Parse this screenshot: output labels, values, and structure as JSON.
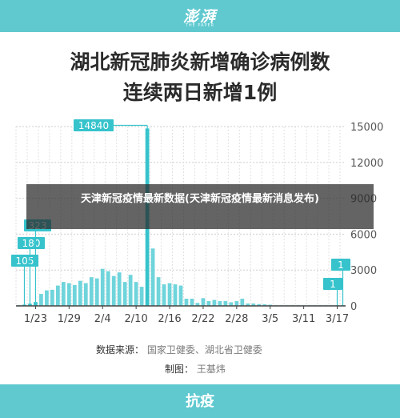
{
  "header": {
    "logo": "澎湃",
    "logo_sub": "THE PAPER"
  },
  "title_line1": "湖北新冠肺炎新增确诊病例数",
  "title_line2": "连续两日新增1例",
  "overlay_text": "天津新冠疫情最新数据(天津新冠疫情最新消息发布)",
  "source": {
    "label": "数据来源：",
    "value": "国家卫健委、湖北省卫健委"
  },
  "credit": {
    "label": "制图：",
    "value": "王基炜"
  },
  "footer": {
    "label": "抗疫"
  },
  "colors": {
    "accent": "#5fc9cf",
    "bar": "#6fd4db",
    "highlight": "#36c3cc"
  },
  "chart_data": {
    "type": "bar",
    "x_ticks": [
      "1/23",
      "1/29",
      "2/4",
      "2/10",
      "2/16",
      "2/22",
      "2/28",
      "3/5",
      "3/11",
      "3/17"
    ],
    "y_ticks": [
      "15000",
      "12000",
      "9000",
      "6000",
      "3000",
      "0"
    ],
    "ylim": [
      0,
      15000
    ],
    "categories": [
      "1/20",
      "1/21",
      "1/22",
      "1/23",
      "1/24",
      "1/25",
      "1/26",
      "1/27",
      "1/28",
      "1/29",
      "1/30",
      "1/31",
      "2/1",
      "2/2",
      "2/3",
      "2/4",
      "2/5",
      "2/6",
      "2/7",
      "2/8",
      "2/9",
      "2/10",
      "2/11",
      "2/12",
      "2/13",
      "2/14",
      "2/15",
      "2/16",
      "2/17",
      "2/18",
      "2/19",
      "2/20",
      "2/21",
      "2/22",
      "2/23",
      "2/24",
      "2/25",
      "2/26",
      "2/27",
      "2/28",
      "2/29",
      "3/1",
      "3/2",
      "3/3",
      "3/4",
      "3/5",
      "3/6",
      "3/7",
      "3/8",
      "3/9",
      "3/10",
      "3/11",
      "3/12",
      "3/13",
      "3/14",
      "3/15",
      "3/16",
      "3/17",
      "3/18"
    ],
    "values": [
      72,
      105,
      180,
      323,
      1000,
      1300,
      1350,
      1700,
      2000,
      1900,
      1750,
      2100,
      1900,
      2400,
      2300,
      3100,
      2900,
      2500,
      2800,
      2000,
      2600,
      2000,
      1600,
      14840,
      4800,
      2400,
      1800,
      1900,
      1800,
      1700,
      600,
      600,
      250,
      650,
      400,
      500,
      400,
      400,
      300,
      400,
      600,
      200,
      200,
      150,
      130,
      100,
      40,
      40,
      30,
      20,
      10,
      10,
      8,
      4,
      4,
      4,
      1,
      1,
      1
    ],
    "annotations": [
      {
        "label": "105",
        "category": "1/21"
      },
      {
        "label": "180",
        "category": "1/22"
      },
      {
        "label": "323",
        "category": "1/23"
      },
      {
        "label": "14840",
        "category": "2/12"
      },
      {
        "label": "1",
        "category": "3/17"
      },
      {
        "label": "1",
        "category": "3/18"
      }
    ]
  }
}
